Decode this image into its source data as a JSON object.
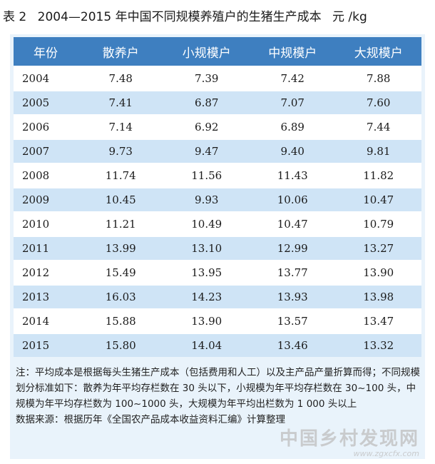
{
  "title": {
    "number": "表 2",
    "text": "2004—2015 年中国不同规模养殖户的生猪生产成本",
    "unit": "元 /kg"
  },
  "table": {
    "headers": [
      "年份",
      "散养户",
      "小规模户",
      "中规模户",
      "大规模户"
    ],
    "rows": [
      [
        "2004",
        "7.48",
        "7.39",
        "7.42",
        "7.88"
      ],
      [
        "2005",
        "7.41",
        "6.87",
        "7.07",
        "7.60"
      ],
      [
        "2006",
        "7.14",
        "6.92",
        "6.89",
        "7.44"
      ],
      [
        "2007",
        "9.73",
        "9.47",
        "9.40",
        "9.81"
      ],
      [
        "2008",
        "11.74",
        "11.56",
        "11.43",
        "11.82"
      ],
      [
        "2009",
        "10.45",
        "9.93",
        "10.06",
        "10.47"
      ],
      [
        "2010",
        "11.21",
        "10.49",
        "10.47",
        "10.79"
      ],
      [
        "2011",
        "13.99",
        "13.10",
        "12.99",
        "13.27"
      ],
      [
        "2012",
        "15.49",
        "13.95",
        "13.77",
        "13.90"
      ],
      [
        "2013",
        "16.03",
        "14.23",
        "13.93",
        "13.98"
      ],
      [
        "2014",
        "15.88",
        "13.90",
        "13.57",
        "13.47"
      ],
      [
        "2015",
        "15.80",
        "14.04",
        "13.46",
        "13.32"
      ]
    ]
  },
  "note": "注：平均成本是根据每头生猪生产成本（包括费用和人工）以及主产品产量折算而得；不同规模划分标准如下：散养为年平均存栏数在 30 头以下，小规模为年平均存栏数在 30~100 头，中规模为年平均存栏数为 100~1000 头，大规模为年平均出栏数为 1 000 头以上",
  "source": "数据来源：根据历年《全国农产品成本收益资料汇编》计算整理",
  "watermark": {
    "text": "中国乡村发现网",
    "url": "www.zgxcfx.com"
  },
  "colors": {
    "header_bg": "#3e7fc0",
    "stripe_bg": "#cfe4f6",
    "panel_bg": "#e9f3fb"
  }
}
